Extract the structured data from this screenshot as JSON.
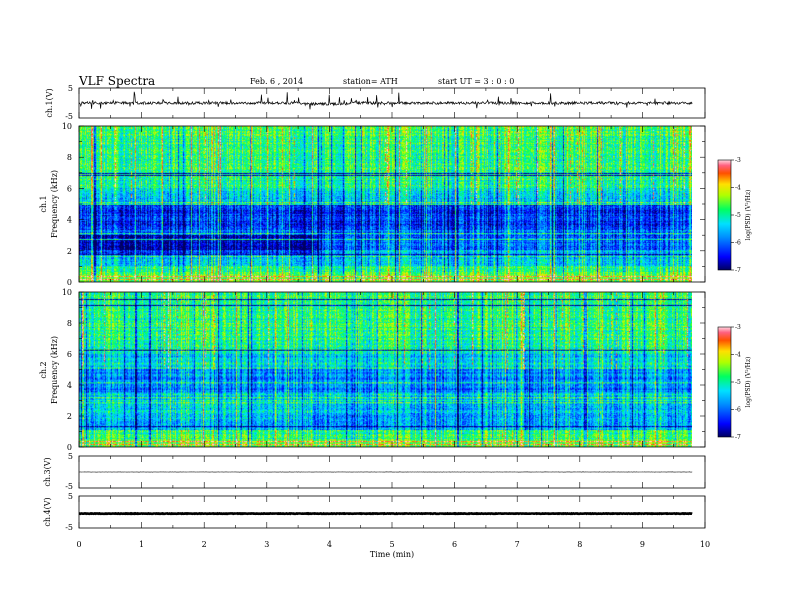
{
  "header": {
    "title": "VLF  Spectra",
    "date": "Feb. 6  , 2014",
    "station": "station= ATH",
    "start": "start  UT =   3  : 0  : 0"
  },
  "chart_data": [
    {
      "type": "line",
      "panel": "ch1-waveform",
      "ylabel": "ch.1(V)",
      "ylim": [
        -5,
        5
      ],
      "yticks": [
        "5",
        "-5"
      ],
      "xlim": [
        0,
        10
      ],
      "signal_extent_min": [
        0,
        9.8
      ],
      "baseline_v": 0,
      "note_level": "dense noisy trace with spikes"
    },
    {
      "type": "heatmap",
      "panel": "ch1-spectrogram",
      "ylabel": "ch.1\nFrequency (kHz)",
      "ylabel_lines": [
        "ch.1",
        "Frequency (kHz)"
      ],
      "ylim": [
        0,
        10
      ],
      "yticks": [
        "0",
        "2",
        "4",
        "6",
        "8",
        "10"
      ],
      "xlim": [
        0,
        10
      ],
      "signal_extent_min": [
        0,
        9.8
      ],
      "colorbar": {
        "label": "log(PSD) (V²/Hz)",
        "range": [
          -7,
          -3
        ],
        "ticks": [
          "-3",
          "-4",
          "-5",
          "-6",
          "-7"
        ]
      }
    },
    {
      "type": "heatmap",
      "panel": "ch2-spectrogram",
      "ylabel": "ch.2\nFrequency (kHz)",
      "ylabel_lines": [
        "ch.2",
        "Frequency (kHz)"
      ],
      "ylim": [
        0,
        10
      ],
      "yticks": [
        "0",
        "2",
        "4",
        "6",
        "8",
        "10"
      ],
      "xlim": [
        0,
        10
      ],
      "signal_extent_min": [
        0,
        9.8
      ],
      "colorbar": {
        "label": "log(PSD) (V²/Hz)",
        "range": [
          -7,
          -3
        ],
        "ticks": [
          "-3",
          "-4",
          "-5",
          "-6",
          "-7"
        ]
      }
    },
    {
      "type": "line",
      "panel": "ch3-waveform",
      "ylabel": "ch.3(V)",
      "ylim": [
        -5,
        5
      ],
      "yticks": [
        "5",
        "-5"
      ],
      "xlim": [
        0,
        10
      ],
      "signal_extent_min": [
        0,
        9.8
      ],
      "baseline_v": 0
    },
    {
      "type": "line",
      "panel": "ch4-waveform",
      "ylabel": "ch.4(V)",
      "ylim": [
        -5,
        5
      ],
      "yticks": [
        "5",
        "-5"
      ],
      "xlim": [
        0,
        10
      ],
      "signal_extent_min": [
        0,
        9.8
      ],
      "baseline_v": -0.5,
      "xlabel": "Time  (min)",
      "xticks": [
        "0",
        "1",
        "2",
        "3",
        "4",
        "5",
        "6",
        "7",
        "8",
        "9",
        "10"
      ]
    }
  ]
}
